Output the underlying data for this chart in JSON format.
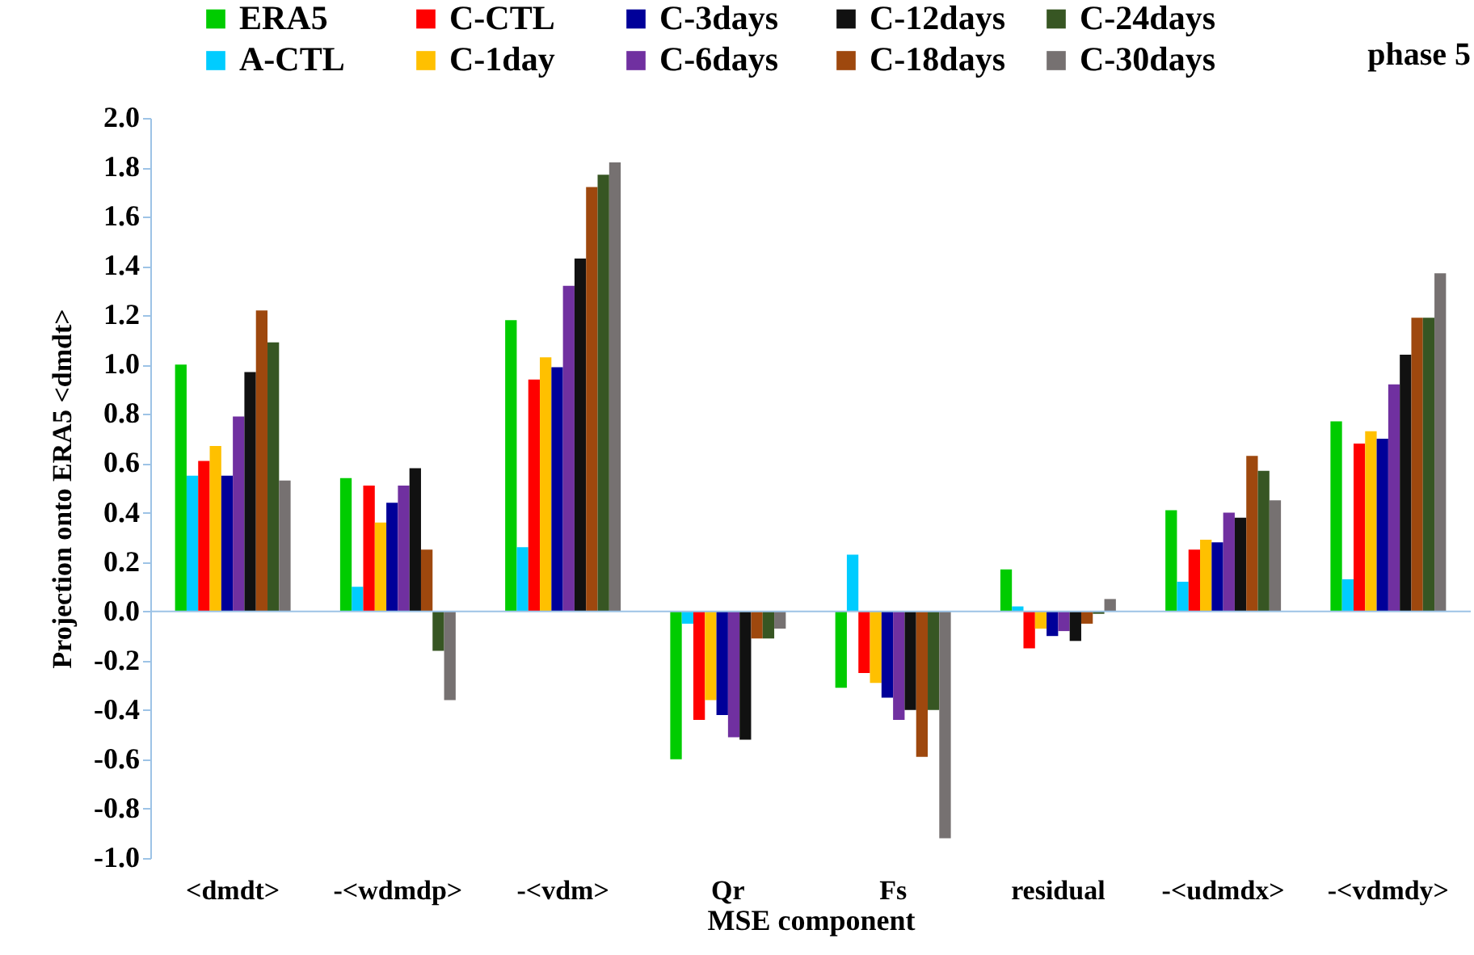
{
  "chart_data": {
    "type": "bar",
    "xlabel": "MSE component",
    "ylabel": "Projection onto ERA5 <dmdt>",
    "annotations": [
      "phase 5"
    ],
    "categories": [
      "<dmdt>",
      "-<wdmdp>",
      "-<vdm>",
      "Qr",
      "Fs",
      "residual",
      "-<udmdx>",
      "-<vdmdy>"
    ],
    "series": [
      {
        "name": "ERA5",
        "color": "#00cc00",
        "values": [
          1.0,
          0.54,
          1.18,
          -0.6,
          -0.31,
          0.17,
          0.41,
          0.77
        ]
      },
      {
        "name": "A-CTL",
        "color": "#00ccff",
        "values": [
          0.55,
          0.1,
          0.26,
          -0.05,
          0.23,
          0.02,
          0.12,
          0.13
        ]
      },
      {
        "name": "C-CTL",
        "color": "#ff0000",
        "values": [
          0.61,
          0.51,
          0.94,
          -0.44,
          -0.25,
          -0.15,
          0.25,
          0.68
        ]
      },
      {
        "name": "C-1day",
        "color": "#ffc000",
        "values": [
          0.67,
          0.36,
          1.03,
          -0.36,
          -0.29,
          -0.07,
          0.29,
          0.73
        ]
      },
      {
        "name": "C-3days",
        "color": "#000099",
        "values": [
          0.55,
          0.44,
          0.99,
          -0.42,
          -0.35,
          -0.1,
          0.28,
          0.7
        ]
      },
      {
        "name": "C-6days",
        "color": "#7030a0",
        "values": [
          0.79,
          0.51,
          1.32,
          -0.51,
          -0.44,
          -0.08,
          0.4,
          0.92
        ]
      },
      {
        "name": "C-12days",
        "color": "#111111",
        "values": [
          0.97,
          0.58,
          1.43,
          -0.52,
          -0.4,
          -0.12,
          0.38,
          1.04
        ]
      },
      {
        "name": "C-18days",
        "color": "#9e480e",
        "values": [
          1.22,
          0.25,
          1.72,
          -0.11,
          -0.59,
          -0.05,
          0.63,
          1.19
        ]
      },
      {
        "name": "C-24days",
        "color": "#375623",
        "values": [
          1.09,
          -0.16,
          1.77,
          -0.11,
          -0.4,
          -0.01,
          0.57,
          1.19
        ]
      },
      {
        "name": "C-30days",
        "color": "#767171",
        "values": [
          0.53,
          -0.36,
          1.82,
          -0.07,
          -0.92,
          0.05,
          0.45,
          1.37
        ]
      }
    ],
    "ylim": [
      -1.0,
      2.0
    ],
    "yticks": [
      {
        "value": -1.0,
        "label": "-1.0"
      },
      -0.8,
      -0.6,
      -0.4,
      -0.2,
      {
        "value": 0,
        "label": "0.0"
      },
      0.2,
      0.4,
      0.6,
      0.8,
      {
        "value": 1.0,
        "label": "1.0"
      },
      1.2,
      1.4,
      1.6,
      1.8,
      {
        "value": 2.0,
        "label": "2.0"
      }
    ],
    "ref_lines": [
      {
        "axis": "y",
        "value": 0,
        "color": "#9dc3e6"
      }
    ],
    "legend": "top"
  }
}
